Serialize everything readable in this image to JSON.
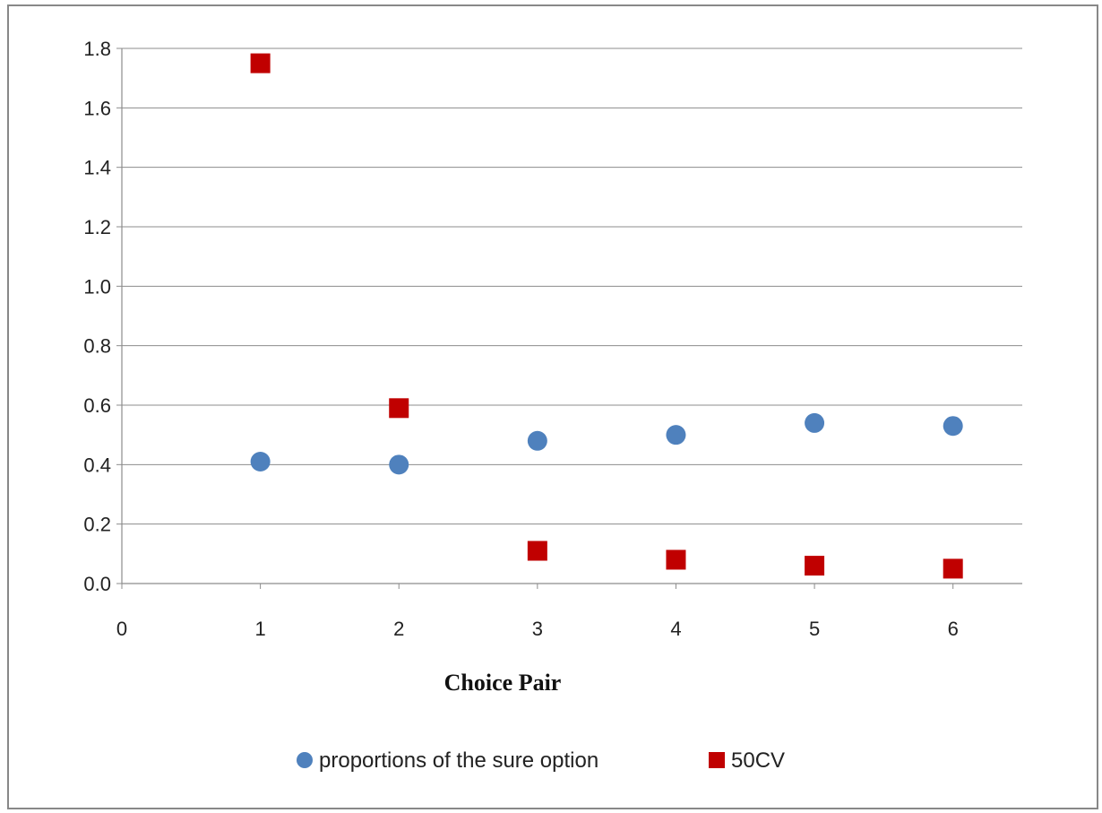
{
  "chart_data": {
    "type": "scatter",
    "title": "",
    "xlabel": "Choice Pair",
    "ylabel": "",
    "xlim": [
      0,
      6.5
    ],
    "ylim": [
      0,
      1.8
    ],
    "x_ticks": [
      "0",
      "1",
      "2",
      "3",
      "4",
      "5",
      "6"
    ],
    "y_ticks": [
      "0.0",
      "0.2",
      "0.4",
      "0.6",
      "0.8",
      "1.0",
      "1.2",
      "1.4",
      "1.6",
      "1.8"
    ],
    "grid": "horizontal",
    "legend_position": "bottom",
    "series": [
      {
        "name": "proportions of the sure option",
        "marker": "circle",
        "color": "#4f81bd",
        "x": [
          1,
          2,
          3,
          4,
          5,
          6
        ],
        "y": [
          0.41,
          0.4,
          0.48,
          0.5,
          0.54,
          0.53
        ]
      },
      {
        "name": "50CV",
        "marker": "square",
        "color": "#c00000",
        "x": [
          1,
          2,
          3,
          4,
          5,
          6
        ],
        "y": [
          1.75,
          0.59,
          0.11,
          0.08,
          0.06,
          0.05
        ]
      }
    ]
  }
}
